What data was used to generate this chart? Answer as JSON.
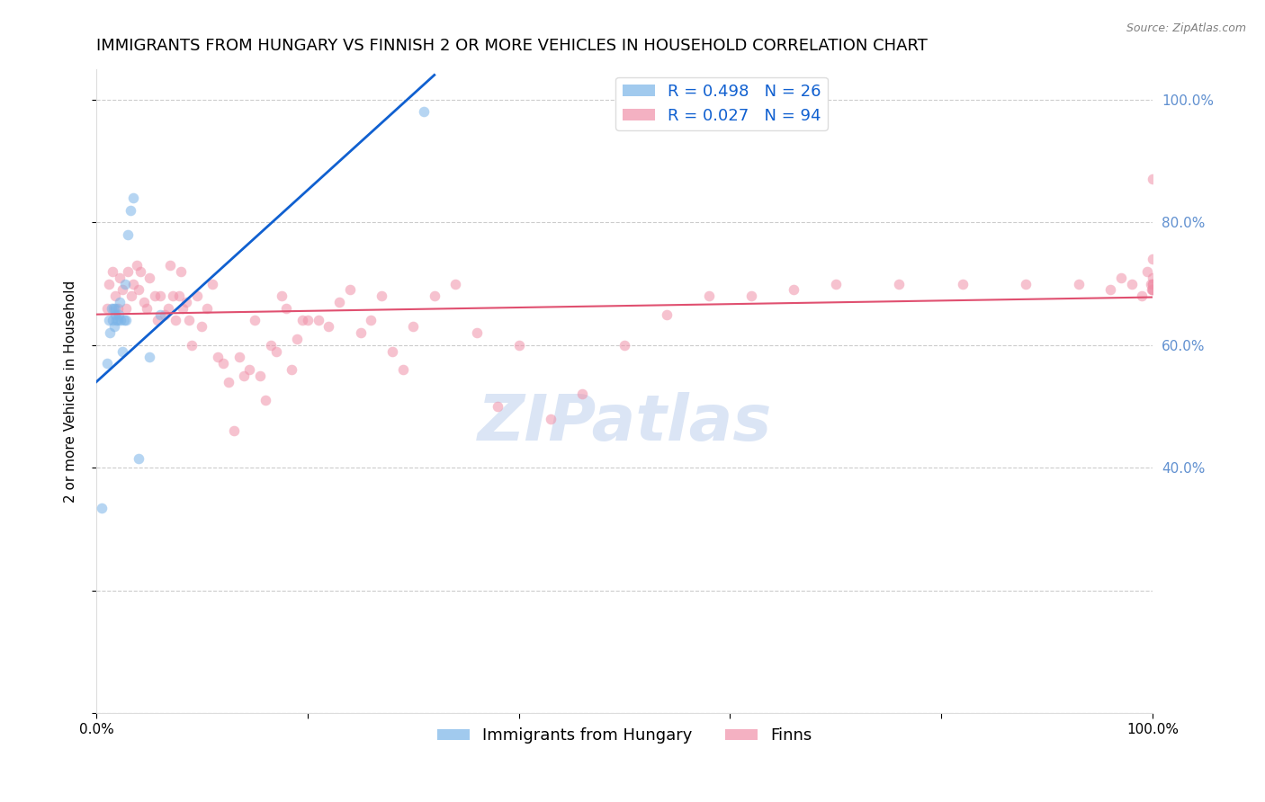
{
  "title": "IMMIGRANTS FROM HUNGARY VS FINNISH 2 OR MORE VEHICLES IN HOUSEHOLD CORRELATION CHART",
  "source": "Source: ZipAtlas.com",
  "ylabel": "2 or more Vehicles in Household",
  "xlim": [
    0,
    1
  ],
  "ylim": [
    0,
    1.05
  ],
  "xtick_positions": [
    0.0,
    0.2,
    0.4,
    0.6,
    0.8,
    1.0
  ],
  "xtick_labels": [
    "0.0%",
    "",
    "",
    "",
    "",
    "100.0%"
  ],
  "ytick_positions": [
    0.0,
    0.2,
    0.4,
    0.6,
    0.8,
    1.0
  ],
  "right_ytick_positions": [
    0.4,
    0.6,
    0.8,
    1.0
  ],
  "right_ytick_labels": [
    "40.0%",
    "60.0%",
    "80.0%",
    "100.0%"
  ],
  "watermark": "ZIPatlas",
  "legend_entries": [
    {
      "label": "R = 0.498   N = 26",
      "color": "#a8c8f0"
    },
    {
      "label": "R = 0.027   N = 94",
      "color": "#f4a0b0"
    }
  ],
  "blue_scatter_x": [
    0.005,
    0.01,
    0.012,
    0.013,
    0.014,
    0.015,
    0.016,
    0.017,
    0.018,
    0.018,
    0.019,
    0.02,
    0.021,
    0.022,
    0.023,
    0.025,
    0.026,
    0.027,
    0.028,
    0.03,
    0.032,
    0.035,
    0.04,
    0.05,
    0.06,
    0.31
  ],
  "blue_scatter_y": [
    0.335,
    0.57,
    0.64,
    0.62,
    0.66,
    0.64,
    0.66,
    0.63,
    0.65,
    0.66,
    0.64,
    0.64,
    0.65,
    0.67,
    0.64,
    0.59,
    0.64,
    0.7,
    0.64,
    0.78,
    0.82,
    0.84,
    0.415,
    0.58,
    0.65,
    0.98
  ],
  "pink_scatter_x": [
    0.01,
    0.012,
    0.015,
    0.018,
    0.02,
    0.022,
    0.025,
    0.028,
    0.03,
    0.033,
    0.035,
    0.038,
    0.04,
    0.042,
    0.045,
    0.048,
    0.05,
    0.055,
    0.058,
    0.06,
    0.065,
    0.068,
    0.07,
    0.072,
    0.075,
    0.078,
    0.08,
    0.082,
    0.085,
    0.088,
    0.09,
    0.095,
    0.1,
    0.105,
    0.11,
    0.115,
    0.12,
    0.125,
    0.13,
    0.135,
    0.14,
    0.145,
    0.15,
    0.155,
    0.16,
    0.165,
    0.17,
    0.175,
    0.18,
    0.185,
    0.19,
    0.195,
    0.2,
    0.21,
    0.22,
    0.23,
    0.24,
    0.25,
    0.26,
    0.27,
    0.28,
    0.29,
    0.3,
    0.32,
    0.34,
    0.36,
    0.38,
    0.4,
    0.43,
    0.46,
    0.5,
    0.54,
    0.58,
    0.62,
    0.66,
    0.7,
    0.76,
    0.82,
    0.88,
    0.93,
    0.96,
    0.97,
    0.98,
    0.99,
    0.995,
    0.998,
    0.999,
    1.0,
    1.0,
    1.0,
    1.0,
    1.0,
    1.0,
    1.0
  ],
  "pink_scatter_y": [
    0.66,
    0.7,
    0.72,
    0.68,
    0.66,
    0.71,
    0.69,
    0.66,
    0.72,
    0.68,
    0.7,
    0.73,
    0.69,
    0.72,
    0.67,
    0.66,
    0.71,
    0.68,
    0.64,
    0.68,
    0.65,
    0.66,
    0.73,
    0.68,
    0.64,
    0.68,
    0.72,
    0.66,
    0.67,
    0.64,
    0.6,
    0.68,
    0.63,
    0.66,
    0.7,
    0.58,
    0.57,
    0.54,
    0.46,
    0.58,
    0.55,
    0.56,
    0.64,
    0.55,
    0.51,
    0.6,
    0.59,
    0.68,
    0.66,
    0.56,
    0.61,
    0.64,
    0.64,
    0.64,
    0.63,
    0.67,
    0.69,
    0.62,
    0.64,
    0.68,
    0.59,
    0.56,
    0.63,
    0.68,
    0.7,
    0.62,
    0.5,
    0.6,
    0.48,
    0.52,
    0.6,
    0.65,
    0.68,
    0.68,
    0.69,
    0.7,
    0.7,
    0.7,
    0.7,
    0.7,
    0.69,
    0.71,
    0.7,
    0.68,
    0.72,
    0.7,
    0.69,
    0.7,
    0.71,
    0.7,
    0.69,
    0.69,
    0.74,
    0.87
  ],
  "blue_line_x": [
    0.0,
    0.32
  ],
  "blue_line_y": [
    0.54,
    1.04
  ],
  "pink_line_x": [
    0.0,
    1.0
  ],
  "pink_line_y": [
    0.65,
    0.678
  ],
  "grid_color": "#cccccc",
  "scatter_alpha": 0.55,
  "scatter_size": 70,
  "title_fontsize": 13,
  "axis_label_fontsize": 11,
  "tick_fontsize": 11,
  "legend_fontsize": 13,
  "watermark_color": "#c8d8f0",
  "watermark_fontsize": 52,
  "blue_scatter_color": "#7ab4e8",
  "pink_scatter_color": "#f090a8",
  "blue_line_color": "#1060d0",
  "pink_line_color": "#e05070",
  "right_axis_color": "#6090d0"
}
